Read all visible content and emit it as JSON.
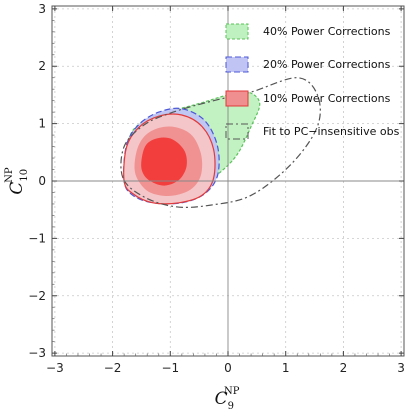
{
  "chart_data": {
    "type": "contour",
    "xlabel": {
      "main": "C",
      "sub": "9",
      "sup": "NP"
    },
    "ylabel": {
      "main": "C",
      "sub": "10",
      "sup": "NP"
    },
    "xlim": [
      -3.05,
      3.05
    ],
    "ylim": [
      -3.05,
      3.05
    ],
    "xticks": [
      -3,
      -2,
      -1,
      0,
      1,
      2,
      3
    ],
    "yticks": [
      -3,
      -2,
      -1,
      0,
      1,
      2,
      3
    ],
    "xtick_labels": [
      "−3",
      "−2",
      "−1",
      "0",
      "1",
      "2",
      "3"
    ],
    "ytick_labels": [
      "−3",
      "−2",
      "−1",
      "0",
      "1",
      "2",
      "3"
    ],
    "grid": true,
    "legend_position": "top-right",
    "series": [
      {
        "name": "40% Power Corrections",
        "color": "#bff0bf",
        "edge": "#5cc05c",
        "dash": "3,2",
        "regions": [
          [
            [
              -1.75,
              0.2
            ],
            [
              -1.7,
              0.78
            ],
            [
              -1.45,
              1.05
            ],
            [
              -1.05,
              1.2
            ],
            [
              -0.5,
              1.35
            ],
            [
              0.0,
              1.5
            ],
            [
              0.35,
              1.55
            ],
            [
              0.55,
              1.35
            ],
            [
              0.4,
              0.95
            ],
            [
              0.15,
              0.45
            ],
            [
              -0.2,
              0.1
            ],
            [
              -0.6,
              -0.15
            ],
            [
              -1.1,
              -0.25
            ],
            [
              -1.55,
              -0.15
            ]
          ]
        ]
      },
      {
        "name": "20% Power Corrections",
        "color": "#c0c4f4",
        "edge": "#4c58d6",
        "dash": "6,3",
        "regions": [
          [
            [
              -1.8,
              0.0
            ],
            [
              -1.76,
              0.62
            ],
            [
              -1.55,
              0.98
            ],
            [
              -1.2,
              1.2
            ],
            [
              -0.8,
              1.26
            ],
            [
              -0.4,
              1.05
            ],
            [
              -0.18,
              0.6
            ],
            [
              -0.18,
              0.1
            ],
            [
              -0.4,
              -0.22
            ],
            [
              -0.8,
              -0.38
            ],
            [
              -1.3,
              -0.38
            ],
            [
              -1.65,
              -0.25
            ]
          ]
        ]
      },
      {
        "name": "10% Power Corrections",
        "color": "#f8c6c6",
        "edge": "#e23a3a",
        "dash": "",
        "regions": [
          [
            [
              -1.8,
              0.0
            ],
            [
              -1.76,
              0.58
            ],
            [
              -1.55,
              0.93
            ],
            [
              -1.2,
              1.13
            ],
            [
              -0.8,
              1.15
            ],
            [
              -0.45,
              0.95
            ],
            [
              -0.25,
              0.55
            ],
            [
              -0.25,
              0.05
            ],
            [
              -0.45,
              -0.25
            ],
            [
              -0.85,
              -0.38
            ],
            [
              -1.3,
              -0.38
            ],
            [
              -1.65,
              -0.22
            ]
          ],
          [
            [
              -1.62,
              0.25
            ],
            [
              -1.55,
              0.62
            ],
            [
              -1.35,
              0.86
            ],
            [
              -1.0,
              0.95
            ],
            [
              -0.65,
              0.82
            ],
            [
              -0.47,
              0.48
            ],
            [
              -0.47,
              0.1
            ],
            [
              -0.65,
              -0.15
            ],
            [
              -1.0,
              -0.26
            ],
            [
              -1.35,
              -0.2
            ],
            [
              -1.55,
              0.0
            ]
          ],
          [
            [
              -1.5,
              0.35
            ],
            [
              -1.42,
              0.63
            ],
            [
              -1.2,
              0.75
            ],
            [
              -0.95,
              0.72
            ],
            [
              -0.75,
              0.52
            ],
            [
              -0.72,
              0.25
            ],
            [
              -0.85,
              0.02
            ],
            [
              -1.1,
              -0.08
            ],
            [
              -1.35,
              0.0
            ],
            [
              -1.48,
              0.15
            ]
          ]
        ],
        "region_fills": [
          "#f8c6c6",
          "#ef8f8f",
          "#f23a3a"
        ]
      },
      {
        "name": "Fit to PC−insensitive obs",
        "color": "none",
        "edge": "#555555",
        "dash": "7,3,2,3",
        "regions": [
          [
            [
              -1.82,
              0.05
            ],
            [
              -1.8,
              0.6
            ],
            [
              -1.45,
              0.98
            ],
            [
              -0.95,
              1.2
            ],
            [
              -0.25,
              1.4
            ],
            [
              0.4,
              1.55
            ],
            [
              1.2,
              1.8
            ],
            [
              1.55,
              1.5
            ],
            [
              1.55,
              0.95
            ],
            [
              1.1,
              0.3
            ],
            [
              0.4,
              -0.25
            ],
            [
              -0.3,
              -0.42
            ],
            [
              -0.9,
              -0.45
            ],
            [
              -1.45,
              -0.28
            ]
          ]
        ]
      }
    ]
  }
}
